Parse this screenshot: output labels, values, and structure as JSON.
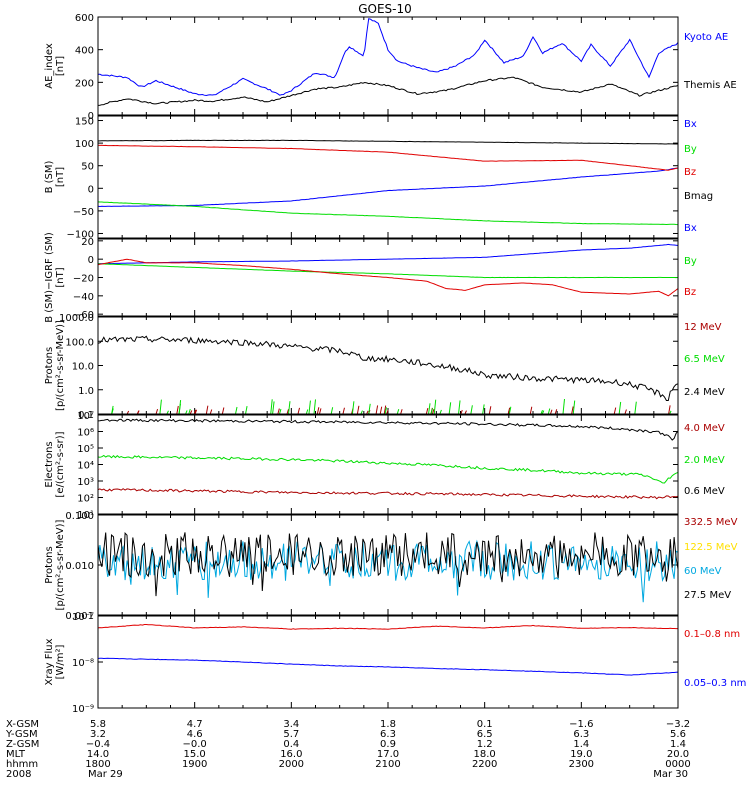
{
  "title": "GOES-10",
  "colors": {
    "black": "#000000",
    "blue": "#0000ff",
    "red": "#e00000",
    "green": "#00dd00",
    "darkred": "#aa0000",
    "cyan": "#00a8e0",
    "yellow": "#ffe000"
  },
  "chart_data": [
    {
      "type": "line",
      "ylabel": [
        "AE_index",
        "[nT]"
      ],
      "ylim": [
        0,
        600
      ],
      "yscale": "linear",
      "yticks": [
        {
          "v": 0,
          "label": "0"
        },
        {
          "v": 200,
          "label": "200"
        },
        {
          "v": 400,
          "label": "400"
        },
        {
          "v": 600,
          "label": "600"
        }
      ],
      "series": [
        {
          "name": "Kyoto AE",
          "color": "blue",
          "t": [
            0,
            0.3,
            0.45,
            0.6,
            1.0,
            1.2,
            1.5,
            1.75,
            1.9,
            2.0,
            2.25,
            2.45,
            2.55,
            2.6,
            2.75,
            2.8,
            2.9,
            3.0,
            3.1,
            3.3,
            3.5,
            3.7,
            3.9,
            4.0,
            4.2,
            4.4,
            4.5,
            4.6,
            4.8,
            5.0,
            5.1,
            5.3,
            5.5,
            5.7,
            5.8,
            6.0
          ],
          "y": [
            250,
            230,
            170,
            210,
            130,
            120,
            220,
            160,
            120,
            150,
            260,
            230,
            380,
            420,
            360,
            590,
            560,
            400,
            330,
            290,
            260,
            300,
            370,
            460,
            320,
            360,
            480,
            380,
            440,
            330,
            430,
            300,
            460,
            230,
            380,
            440
          ]
        },
        {
          "name": "Themis AE",
          "color": "black",
          "t": [
            0,
            0.3,
            0.6,
            1.0,
            1.2,
            1.5,
            1.75,
            2.0,
            2.25,
            2.5,
            2.75,
            3.0,
            3.3,
            3.6,
            4.0,
            4.3,
            4.6,
            5.0,
            5.3,
            5.6,
            6.0
          ],
          "y": [
            60,
            100,
            70,
            90,
            85,
            110,
            80,
            120,
            160,
            170,
            200,
            180,
            130,
            150,
            210,
            230,
            170,
            140,
            190,
            120,
            180
          ]
        }
      ]
    },
    {
      "type": "line",
      "ylabel": [
        "B (SM)",
        "[nT]"
      ],
      "ylim": [
        -110,
        160
      ],
      "yscale": "linear",
      "yticks": [
        {
          "v": -100,
          "label": "−100"
        },
        {
          "v": -50,
          "label": "−50"
        },
        {
          "v": 0,
          "label": "0"
        },
        {
          "v": 50,
          "label": "50"
        },
        {
          "v": 100,
          "label": "100"
        },
        {
          "v": 150,
          "label": "150"
        }
      ],
      "series": [
        {
          "name": "Bx",
          "color": "blue",
          "t": [
            0,
            1,
            2,
            3,
            4,
            5,
            5.8,
            6.0
          ],
          "y": [
            -40,
            -38,
            -28,
            -5,
            5,
            25,
            38,
            45
          ]
        },
        {
          "name": "By",
          "color": "green",
          "t": [
            0,
            1,
            2,
            3,
            4,
            5,
            6
          ],
          "y": [
            -30,
            -40,
            -55,
            -62,
            -72,
            -78,
            -80
          ]
        },
        {
          "name": "Bz",
          "color": "red",
          "t": [
            0,
            1,
            2,
            3,
            4,
            5,
            5.5,
            5.9,
            6.0
          ],
          "y": [
            95,
            92,
            88,
            80,
            60,
            62,
            50,
            40,
            45
          ]
        },
        {
          "name": "Bmag",
          "color": "black",
          "t": [
            0,
            1,
            2,
            3,
            4,
            5,
            6
          ],
          "y": [
            105,
            106,
            106,
            104,
            102,
            100,
            98
          ]
        }
      ]
    },
    {
      "type": "line",
      "ylabel": [
        "B (SM)−IGRF (SM)",
        "[nT]"
      ],
      "ylim": [
        -62,
        22
      ],
      "yscale": "linear",
      "yticks": [
        {
          "v": -60,
          "label": "−60"
        },
        {
          "v": -40,
          "label": "−40"
        },
        {
          "v": -20,
          "label": "−20"
        },
        {
          "v": 0,
          "label": "0"
        },
        {
          "v": 20,
          "label": "20"
        }
      ],
      "series": [
        {
          "name": "Bx",
          "color": "blue",
          "t": [
            0,
            1,
            2,
            3,
            4,
            4.5,
            5,
            5.5,
            5.9,
            6.0
          ],
          "y": [
            -5,
            -3,
            -2,
            0,
            2,
            6,
            10,
            12,
            16,
            15
          ]
        },
        {
          "name": "By",
          "color": "green",
          "t": [
            0,
            1,
            2,
            3,
            4,
            5,
            6
          ],
          "y": [
            -5,
            -9,
            -13,
            -16,
            -20,
            -20,
            -20
          ]
        },
        {
          "name": "Bz",
          "color": "red",
          "t": [
            0,
            0.3,
            0.5,
            1,
            1.5,
            2,
            2.5,
            3,
            3.4,
            3.6,
            3.8,
            4,
            4.4,
            4.7,
            5,
            5.5,
            5.8,
            5.9,
            6.0
          ],
          "y": [
            -6,
            0,
            -4,
            -4,
            -7,
            -11,
            -16,
            -20,
            -24,
            -32,
            -34,
            -28,
            -26,
            -28,
            -36,
            -38,
            -35,
            -40,
            -32
          ]
        }
      ]
    },
    {
      "type": "line",
      "ylabel": [
        "Protons",
        "[p/(cm²-s-sr-MeV)]"
      ],
      "ylim": [
        0.1,
        1000
      ],
      "yscale": "log",
      "yticks": [
        {
          "v": 0.1,
          "label": "0.1"
        },
        {
          "v": 1,
          "label": "1.0"
        },
        {
          "v": 10,
          "label": "10.0"
        },
        {
          "v": 100,
          "label": "100.0"
        },
        {
          "v": 1000,
          "label": "1000.0"
        }
      ],
      "series": [
        {
          "name": "12 MeV",
          "color": "darkred",
          "t": [],
          "y": []
        },
        {
          "name": "6.5 MeV",
          "color": "green",
          "t": [],
          "y": []
        },
        {
          "name": "2.4 MeV",
          "color": "black",
          "t": [
            0,
            0.5,
            1,
            1.5,
            2,
            2.5,
            2.75,
            3,
            3.5,
            4,
            4.5,
            5,
            5.4,
            5.7,
            5.9,
            6.0
          ],
          "y": [
            110,
            120,
            110,
            90,
            60,
            40,
            20,
            18,
            10,
            4,
            3,
            2.5,
            2.0,
            1.0,
            0.4,
            2
          ]
        }
      ]
    },
    {
      "type": "line",
      "ylabel": [
        "Electrons",
        "[e/(cm²-s-sr)]"
      ],
      "ylim": [
        10,
        10000000
      ],
      "yscale": "log",
      "yticks": [
        {
          "v": 10,
          "label": "10¹"
        },
        {
          "v": 100,
          "label": "10²"
        },
        {
          "v": 1000,
          "label": "10³"
        },
        {
          "v": 10000,
          "label": "10⁴"
        },
        {
          "v": 100000,
          "label": "10⁵"
        },
        {
          "v": 1000000,
          "label": "10⁶"
        },
        {
          "v": 10000000,
          "label": "10⁷"
        }
      ],
      "series": [
        {
          "name": "4.0 MeV",
          "color": "darkred",
          "t": [
            0,
            1,
            2,
            3,
            4,
            5,
            5.8,
            6.0
          ],
          "y": [
            300,
            250,
            200,
            180,
            150,
            120,
            100,
            120
          ]
        },
        {
          "name": "2.0 MeV",
          "color": "green",
          "t": [
            0,
            1,
            2,
            3,
            4,
            5,
            5.6,
            5.85,
            6.0
          ],
          "y": [
            30000,
            25000,
            20000,
            12000,
            6000,
            3000,
            2500,
            600,
            3000
          ]
        },
        {
          "name": "0.6 MeV",
          "color": "black",
          "t": [
            0,
            1,
            2,
            3,
            4,
            5,
            5.8,
            5.95,
            6.0
          ],
          "y": [
            5000000,
            4500000,
            4000000,
            3500000,
            2800000,
            2000000,
            900000,
            300000,
            1000000
          ]
        }
      ]
    },
    {
      "type": "line",
      "ylabel": [
        "Protons",
        "[p/(cm²-s-sr-MeV)]"
      ],
      "ylim": [
        0.001,
        0.1
      ],
      "yscale": "log",
      "yticks": [
        {
          "v": 0.001,
          "label": "0.001"
        },
        {
          "v": 0.01,
          "label": "0.010"
        },
        {
          "v": 0.1,
          "label": "0.100"
        }
      ],
      "series": [
        {
          "name": "332.5 MeV",
          "color": "darkred",
          "t": [],
          "y": []
        },
        {
          "name": "122.5 MeV",
          "color": "yellow",
          "t": [],
          "y": []
        },
        {
          "name": "60 MeV",
          "color": "cyan",
          "t": [
            0,
            6
          ],
          "y": [
            0.012,
            0.012
          ]
        },
        {
          "name": "27.5 MeV",
          "color": "black",
          "t": [
            0,
            6
          ],
          "y": [
            0.016,
            0.016
          ]
        }
      ]
    },
    {
      "type": "line",
      "ylabel": [
        "Xray  Flux",
        "[W/m²]"
      ],
      "ylim": [
        1e-09,
        1e-07
      ],
      "yscale": "log",
      "yticks": [
        {
          "v": 1e-09,
          "label": "10⁻⁹"
        },
        {
          "v": 1e-08,
          "label": "10⁻⁸"
        },
        {
          "v": 1e-07,
          "label": "10⁻⁷"
        }
      ],
      "series": [
        {
          "name": "0.1–0.8 nm",
          "color": "red",
          "t": [
            0,
            0.5,
            1,
            1.5,
            2,
            2.5,
            3,
            3.5,
            4,
            4.5,
            5,
            5.5,
            6
          ],
          "y": [
            5.5e-08,
            6.5e-08,
            5.5e-08,
            5.8e-08,
            5.2e-08,
            5.4e-08,
            5.2e-08,
            6e-08,
            5.5e-08,
            6.2e-08,
            5.4e-08,
            5.6e-08,
            5.3e-08
          ]
        },
        {
          "name": "0.05–0.3 nm",
          "color": "blue",
          "t": [
            0,
            0.5,
            1,
            1.5,
            2,
            2.5,
            3,
            3.5,
            4,
            4.5,
            5,
            5.5,
            6
          ],
          "y": [
            1.2e-08,
            1.15e-08,
            1.1e-08,
            1e-08,
            9e-09,
            8.2e-09,
            7.8e-09,
            7.2e-09,
            6.8e-09,
            6.3e-09,
            5.8e-09,
            5.2e-09,
            6e-09
          ]
        }
      ]
    }
  ],
  "x_axis": {
    "rows": [
      {
        "label": "X-GSM",
        "values": [
          "5.8",
          "4.7",
          "3.4",
          "1.8",
          "0.1",
          "−1.6",
          "−3.2"
        ]
      },
      {
        "label": "Y-GSM",
        "values": [
          "3.2",
          "4.6",
          "5.7",
          "6.3",
          "6.5",
          "6.3",
          "5.6"
        ]
      },
      {
        "label": "Z-GSM",
        "values": [
          "−0.4",
          "−0.0",
          "0.4",
          "0.9",
          "1.2",
          "1.4",
          "1.4"
        ]
      },
      {
        "label": "MLT",
        "values": [
          "14.0",
          "15.0",
          "16.0",
          "17.0",
          "18.0",
          "19.0",
          "20.0"
        ]
      },
      {
        "label": "hhmm",
        "values": [
          "1800",
          "1900",
          "2000",
          "2100",
          "2200",
          "2300",
          "0000"
        ]
      },
      {
        "label": "2008",
        "values": [
          "Mar 29",
          "",
          "",
          "",
          "",
          "",
          "Mar 30"
        ]
      }
    ]
  }
}
